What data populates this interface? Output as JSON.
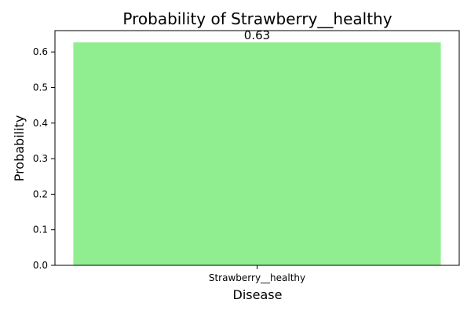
{
  "chart_data": {
    "type": "bar",
    "title": "Probability of Strawberry__healthy",
    "xlabel": "Disease",
    "ylabel": "Probability",
    "categories": [
      "Strawberry__healthy"
    ],
    "values": [
      0.627
    ],
    "value_labels": [
      "0.63"
    ],
    "ylim": [
      0,
      0.66
    ],
    "yticks": [
      0.0,
      0.1,
      0.2,
      0.3,
      0.4,
      0.5,
      0.6
    ],
    "ytick_labels": [
      "0.0",
      "0.1",
      "0.2",
      "0.3",
      "0.4",
      "0.5",
      "0.6"
    ],
    "bar_color": "#90ee90",
    "grid": false
  }
}
